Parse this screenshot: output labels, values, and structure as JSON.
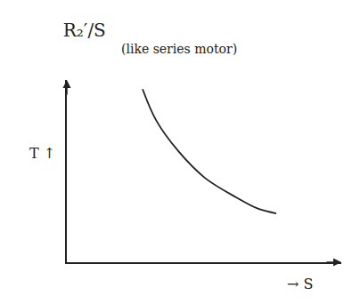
{
  "chart_data": {
    "type": "line",
    "title": "R₂′/S",
    "annotation": "(like series motor)",
    "x_label": "→ S",
    "y_label": "T ↑",
    "x": [
      2.76,
      3.25,
      4.06,
      5.03,
      6.17,
      6.98,
      7.63
    ],
    "values": [
      9.5,
      7.8,
      6.1,
      4.63,
      3.56,
      2.93,
      2.68
    ],
    "color": "#222222",
    "xlim": [
      0,
      10
    ],
    "ylim": [
      0,
      10
    ],
    "tick_labels": false,
    "grid": false
  }
}
